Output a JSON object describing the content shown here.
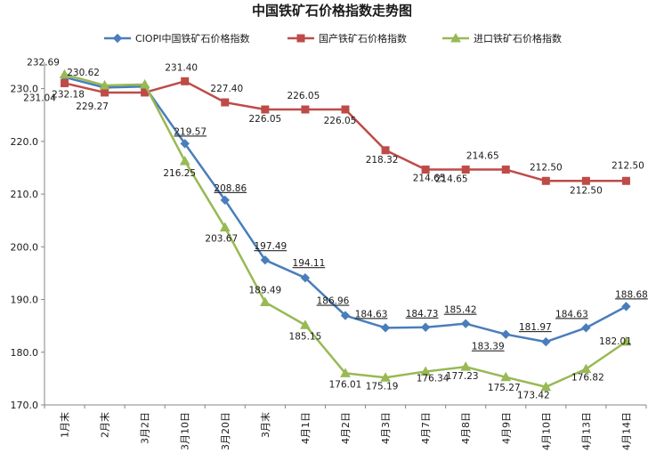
{
  "chart_data": {
    "type": "line",
    "title": "中国铁矿石价格指数走势图",
    "xlabel": "",
    "ylabel": "",
    "ylim": [
      170,
      235
    ],
    "yticks": [
      "170.0",
      "180.0",
      "190.0",
      "200.0",
      "210.0",
      "220.0",
      "230.0"
    ],
    "grid": false,
    "legend_position": "top",
    "categories": [
      "1月末",
      "2月末",
      "3月2日",
      "3月10日",
      "3月20日",
      "3月末",
      "4月1日",
      "4月2日",
      "4月3日",
      "4月7日",
      "4月8日",
      "4月9日",
      "4月10日",
      "4月13日",
      "4月14日"
    ],
    "series": [
      {
        "name": "CIOPI中国铁矿石价格指数",
        "color": "#4a7ebb",
        "marker": "diamond",
        "values": [
          232.18,
          230.2,
          230.4,
          219.57,
          208.86,
          197.49,
          194.11,
          186.96,
          184.63,
          184.73,
          185.42,
          183.39,
          181.97,
          184.63,
          188.68
        ],
        "labels": [
          "232.18",
          "",
          "",
          "219.57",
          "208.86",
          "197.49",
          "194.11",
          "186.96",
          "184.63",
          "184.73",
          "185.42",
          "183.39",
          "181.97",
          "184.63",
          "188.68"
        ]
      },
      {
        "name": "国产铁矿石价格指数",
        "color": "#be4b48",
        "marker": "square",
        "values": [
          231.04,
          229.27,
          229.27,
          231.4,
          227.4,
          226.05,
          226.05,
          226.05,
          218.32,
          214.65,
          214.65,
          214.65,
          212.5,
          212.5,
          212.5
        ],
        "labels": [
          "231.04",
          "229.27",
          "",
          "231.40",
          "227.40",
          "226.05",
          "226.05",
          "226.05",
          "218.32",
          "214.65",
          "214.65",
          "214.65",
          "212.50",
          "212.50",
          "212.50"
        ]
      },
      {
        "name": "进口铁矿石价格指数",
        "color": "#98b954",
        "marker": "triangle",
        "values": [
          232.69,
          230.62,
          230.8,
          216.25,
          203.67,
          189.49,
          185.15,
          176.01,
          175.19,
          176.34,
          177.23,
          175.27,
          173.42,
          176.82,
          182.01
        ],
        "labels": [
          "232.69",
          "230.62",
          "",
          "216.25",
          "203.67",
          "189.49",
          "185.15",
          "176.01",
          "175.19",
          "176.34",
          "177.23",
          "175.27",
          "173.42",
          "176.82",
          "182.01"
        ]
      }
    ]
  }
}
